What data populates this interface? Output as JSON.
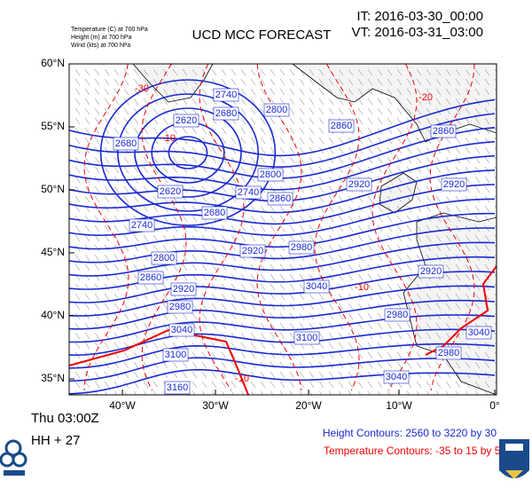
{
  "header": {
    "legend_lines": [
      "Temperature  (C)    at  700 hPa",
      "Height  (m)    at  700 hPa",
      "Wind  (kts)    at  700 hPa"
    ],
    "title": "UCD MCC FORECAST",
    "it": "IT: 2016-03-30_00:00",
    "vt": "VT: 2016-03-31_03:00"
  },
  "map": {
    "lat_labels": [
      "60°N",
      "55°N",
      "50°N",
      "45°N",
      "40°N",
      "35°N"
    ],
    "lon_labels": [
      "40°W",
      "30°W",
      "20°W",
      "10°W",
      "0°"
    ],
    "height_labels": [
      "2740",
      "2680",
      "2620",
      "2800",
      "2680",
      "2860",
      "2860",
      "2800",
      "2740",
      "2860",
      "2620",
      "2680",
      "2920",
      "2920",
      "2740",
      "2920",
      "2980",
      "2800",
      "2860",
      "3040",
      "2920",
      "2920",
      "2980",
      "2980",
      "3040",
      "3100",
      "2980",
      "3040",
      "3100",
      "3040",
      "3160"
    ],
    "temp_labels": [
      "-30",
      "-10",
      "-20",
      "-10",
      "-10"
    ]
  },
  "footer": {
    "time": "Thu 03:00Z",
    "lead": "HH + 27",
    "height_note": "Height Contours: 2560 to 3220 by 30",
    "temp_note": "Temperature Contours: -35 to 15 by 5"
  }
}
